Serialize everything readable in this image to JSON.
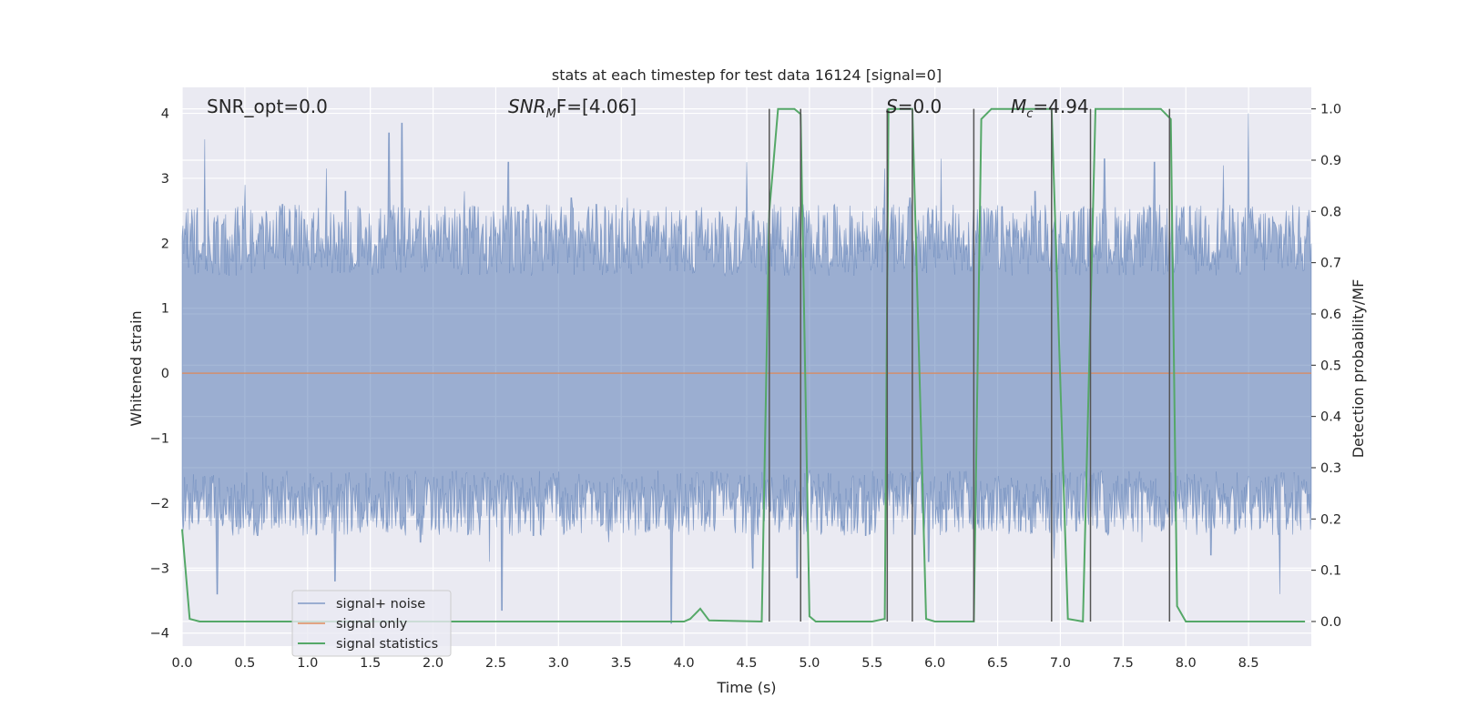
{
  "chart_data": {
    "type": "line",
    "title": "stats at each timestep for test data 16124 [signal=0]",
    "xlabel": "Time (s)",
    "ylabel": "Whitened strain",
    "ylabel_right": "Detection probability/MF",
    "xlim": [
      0,
      9.0
    ],
    "ylim": [
      -4.2,
      4.4
    ],
    "ylim_right": [
      -0.048,
      1.042
    ],
    "x_ticks": [
      "0.0",
      "0.5",
      "1.0",
      "1.5",
      "2.0",
      "2.5",
      "3.0",
      "3.5",
      "4.0",
      "4.5",
      "5.0",
      "5.5",
      "6.0",
      "6.5",
      "7.0",
      "7.5",
      "8.0",
      "8.5"
    ],
    "y_ticks": [
      "4",
      "3",
      "2",
      "1",
      "0",
      "−1",
      "−2",
      "−3",
      "−4"
    ],
    "y_ticks_right": [
      "1.0",
      "0.9",
      "0.8",
      "0.7",
      "0.6",
      "0.5",
      "0.4",
      "0.3",
      "0.2",
      "0.1",
      "0.0"
    ],
    "grid": true,
    "legend_position": "lower-left",
    "annotations": {
      "snr_opt": "SNR_opt=0.0",
      "snr_mf_prefix": "SNR",
      "snr_mf_sub": "M",
      "snr_mf_suffix": "F=[4.06]",
      "s_prefix": "S",
      "s_suffix": "=0.0",
      "mc_prefix": "M",
      "mc_sub": "c",
      "mc_suffix": "=4.94"
    },
    "series": [
      {
        "name": "signal+ noise",
        "color": "#4c72b0",
        "description_range": [
          -3.8,
          3.9
        ],
        "peaks": [
          [
            0.18,
            3.6
          ],
          [
            0.5,
            2.9
          ],
          [
            0.8,
            2.6
          ],
          [
            0.95,
            2.5
          ],
          [
            1.15,
            3.15
          ],
          [
            1.3,
            2.8
          ],
          [
            1.65,
            3.7
          ],
          [
            1.75,
            3.85
          ],
          [
            1.9,
            2.5
          ],
          [
            2.25,
            2.8
          ],
          [
            2.6,
            3.25
          ],
          [
            3.1,
            2.7
          ],
          [
            3.3,
            2.6
          ],
          [
            3.55,
            2.7
          ],
          [
            4.1,
            2.5
          ],
          [
            4.5,
            3.25
          ],
          [
            4.75,
            2.5
          ],
          [
            4.95,
            2.6
          ],
          [
            5.6,
            3.15
          ],
          [
            5.8,
            2.7
          ],
          [
            6.05,
            3.3
          ],
          [
            6.45,
            2.5
          ],
          [
            6.8,
            2.8
          ],
          [
            7.35,
            3.3
          ],
          [
            7.75,
            3.25
          ],
          [
            8.3,
            3.2
          ],
          [
            8.5,
            4.0
          ],
          [
            8.8,
            2.5
          ]
        ],
        "troughs": [
          [
            0.28,
            -3.4
          ],
          [
            0.6,
            -2.5
          ],
          [
            0.75,
            -2.3
          ],
          [
            1.22,
            -3.2
          ],
          [
            1.9,
            -2.6
          ],
          [
            2.45,
            -2.9
          ],
          [
            2.55,
            -3.65
          ],
          [
            2.8,
            -2.5
          ],
          [
            3.4,
            -2.6
          ],
          [
            3.9,
            -3.85
          ],
          [
            4.55,
            -3.0
          ],
          [
            4.9,
            -3.15
          ],
          [
            5.45,
            -2.5
          ],
          [
            5.95,
            -2.9
          ],
          [
            6.3,
            -2.4
          ],
          [
            6.95,
            -2.85
          ],
          [
            7.65,
            -2.6
          ],
          [
            8.2,
            -2.8
          ],
          [
            8.75,
            -3.4
          ]
        ]
      },
      {
        "name": "signal only",
        "color": "#dd8452",
        "x": [
          0.0,
          9.0
        ],
        "y": [
          0.0,
          0.0
        ]
      },
      {
        "name": "signal statistics",
        "color": "#55a868",
        "axis": "right",
        "x": [
          0.0,
          0.06,
          0.14,
          1.0,
          2.0,
          3.0,
          4.0,
          4.05,
          4.13,
          4.2,
          4.62,
          4.68,
          4.75,
          4.88,
          4.93,
          5.0,
          5.05,
          5.5,
          5.6,
          5.63,
          5.7,
          5.82,
          5.93,
          6.0,
          6.31,
          6.37,
          6.45,
          6.93,
          7.06,
          7.18,
          7.28,
          7.8,
          7.88,
          7.93,
          8.0,
          8.95
        ],
        "y": [
          0.18,
          0.005,
          0.0,
          0.0,
          0.0,
          0.0,
          0.0,
          0.005,
          0.025,
          0.002,
          0.0,
          0.8,
          1.0,
          1.0,
          0.99,
          0.01,
          0.0,
          0.0,
          0.005,
          1.0,
          1.0,
          1.0,
          0.005,
          0.0,
          0.0,
          0.98,
          1.0,
          1.0,
          0.005,
          0.0,
          1.0,
          1.0,
          0.98,
          0.03,
          0.0,
          0.0
        ]
      }
    ],
    "vertical_markers": [
      4.68,
      4.93,
      5.62,
      5.82,
      6.31,
      6.93,
      7.24,
      7.87
    ],
    "vertical_marker_color": "#555555"
  },
  "legend": {
    "noise_label": "signal+ noise",
    "signal_label": "signal only",
    "stats_label": "signal statistics"
  }
}
